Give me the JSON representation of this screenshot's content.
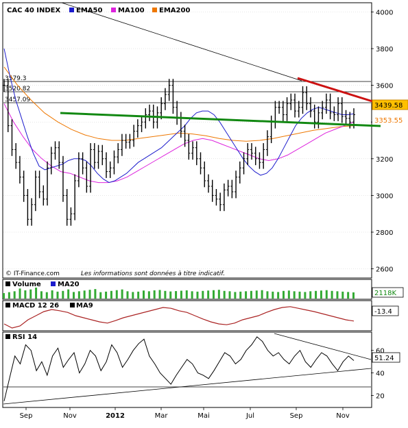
{
  "legend": {
    "index_label": "CAC 40 INDEX",
    "ema50_label": "EMA50",
    "ma100_label": "MA100",
    "ema200_label": "EMA200"
  },
  "colors": {
    "price": "#000000",
    "ema50": "#1c1ccc",
    "ma100": "#dd22dd",
    "ema200": "#ee7700",
    "support": "#118811",
    "resistance": "#cc1111",
    "volume": "#33aa33",
    "badge_fill": "#ffc000",
    "grid": "#888888"
  },
  "footer": {
    "copyright": "© IT-Finance.com",
    "disclaimer": "Les informations sont données à titre indicatif."
  },
  "price_levels": [
    "3579.3",
    "3520.82",
    "3457.09"
  ],
  "badges": {
    "last_price": "3439.58",
    "second_price": "3353.55"
  },
  "volume_panel": {
    "label": "Volume",
    "ma_label": "MA20",
    "value": "2118K"
  },
  "macd_panel": {
    "label": "MACD 12 26",
    "signal_label": "MA9",
    "value": "-13.4"
  },
  "rsi_panel": {
    "label": "RSI 14",
    "value": "51.24"
  },
  "chart_data": {
    "type": "line",
    "x_labels": [
      "Sep",
      "Nov",
      "2012",
      "Mar",
      "Mai",
      "Jul",
      "Sep",
      "Nov"
    ],
    "main": {
      "ylim": [
        2550,
        4050
      ],
      "yticks": [
        2600,
        2800,
        3000,
        3200,
        3400,
        3600,
        3800,
        4000
      ],
      "price": [
        3600,
        3380,
        3250,
        3180,
        3100,
        3000,
        2870,
        2950,
        3100,
        3020,
        2980,
        3150,
        3230,
        3260,
        3180,
        3000,
        2870,
        2900,
        3080,
        3200,
        3150,
        3050,
        3250,
        3180,
        3240,
        3200,
        3130,
        3150,
        3210,
        3250,
        3300,
        3290,
        3300,
        3350,
        3380,
        3400,
        3440,
        3460,
        3400,
        3450,
        3500,
        3550,
        3600,
        3480,
        3420,
        3350,
        3300,
        3230,
        3260,
        3200,
        3150,
        3080,
        3050,
        3000,
        2980,
        2950,
        3030,
        3050,
        3020,
        3100,
        3150,
        3200,
        3250,
        3230,
        3200,
        3180,
        3250,
        3320,
        3400,
        3480,
        3480,
        3440,
        3500,
        3520,
        3460,
        3480,
        3560,
        3500,
        3460,
        3400,
        3450,
        3480,
        3520,
        3450,
        3440,
        3500,
        3430,
        3420,
        3400,
        3440
      ],
      "ema50": [
        3800,
        3650,
        3520,
        3420,
        3320,
        3230,
        3160,
        3140,
        3150,
        3160,
        3170,
        3190,
        3200,
        3200,
        3190,
        3160,
        3120,
        3090,
        3070,
        3080,
        3100,
        3120,
        3150,
        3180,
        3200,
        3220,
        3240,
        3260,
        3290,
        3320,
        3350,
        3380,
        3420,
        3450,
        3460,
        3460,
        3440,
        3400,
        3350,
        3300,
        3250,
        3200,
        3160,
        3130,
        3110,
        3120,
        3150,
        3200,
        3260,
        3320,
        3380,
        3420,
        3450,
        3470,
        3480,
        3470,
        3460,
        3450,
        3440,
        3440,
        3445
      ],
      "ma100": [
        3500,
        3400,
        3320,
        3250,
        3200,
        3160,
        3130,
        3120,
        3100,
        3080,
        3070,
        3070,
        3080,
        3100,
        3130,
        3160,
        3190,
        3220,
        3250,
        3280,
        3300,
        3310,
        3300,
        3280,
        3260,
        3240,
        3220,
        3200,
        3190,
        3200,
        3220,
        3250,
        3280,
        3310,
        3340,
        3360,
        3380,
        3400
      ],
      "ema200": [
        3700,
        3600,
        3520,
        3450,
        3400,
        3360,
        3330,
        3310,
        3300,
        3300,
        3310,
        3320,
        3330,
        3340,
        3335,
        3325,
        3310,
        3300,
        3295,
        3300,
        3310,
        3325,
        3340,
        3355,
        3365,
        3375,
        3380
      ],
      "support_line": {
        "from": [
          "Sep",
          3360
        ],
        "to": [
          "Nov",
          3300
        ]
      },
      "resistance_line": {
        "from": [
          "Sep",
          3600
        ],
        "to": [
          "Nov",
          3450
        ]
      },
      "long_trend_line": {
        "from": [
          "Sep",
          4080
        ],
        "to": [
          "Sep",
          3580
        ]
      }
    },
    "volume": [
      30,
      35,
      40,
      55,
      45,
      50,
      60,
      40,
      35,
      45,
      38,
      42,
      50,
      36,
      40,
      44,
      48,
      52,
      35,
      38,
      42,
      46,
      50,
      40,
      36,
      38,
      44,
      40,
      45,
      47,
      42,
      39,
      41,
      43,
      45,
      40,
      38,
      42,
      44,
      46,
      48,
      42,
      40,
      36,
      38,
      40,
      42,
      44,
      46,
      40,
      38,
      36,
      42,
      44,
      40,
      38,
      36,
      40,
      42,
      44,
      46,
      42,
      40,
      38,
      36,
      34
    ],
    "macd": [
      -20,
      -30,
      -25,
      -10,
      0,
      10,
      15,
      12,
      8,
      0,
      -5,
      -10,
      -15,
      -18,
      -12,
      -5,
      0,
      5,
      10,
      15,
      20,
      18,
      12,
      8,
      0,
      -8,
      -15,
      -20,
      -22,
      -18,
      -10,
      -5,
      0,
      8,
      15,
      20,
      22,
      18,
      14,
      10,
      5,
      0,
      -5,
      -10,
      -13
    ],
    "rsi": {
      "ylim": [
        10,
        75
      ],
      "yticks": [
        20,
        40,
        60
      ],
      "values": [
        15,
        35,
        55,
        48,
        65,
        60,
        42,
        50,
        38,
        55,
        62,
        45,
        52,
        58,
        40,
        48,
        60,
        55,
        42,
        50,
        65,
        58,
        45,
        52,
        60,
        66,
        70,
        55,
        48,
        40,
        35,
        30,
        38,
        45,
        52,
        48,
        40,
        38,
        35,
        42,
        50,
        58,
        55,
        48,
        52,
        60,
        65,
        72,
        68,
        60,
        55,
        58,
        52,
        48,
        55,
        60,
        50,
        45,
        52,
        58,
        55,
        48,
        42,
        50,
        55,
        51
      ],
      "level_line": 30
    }
  }
}
